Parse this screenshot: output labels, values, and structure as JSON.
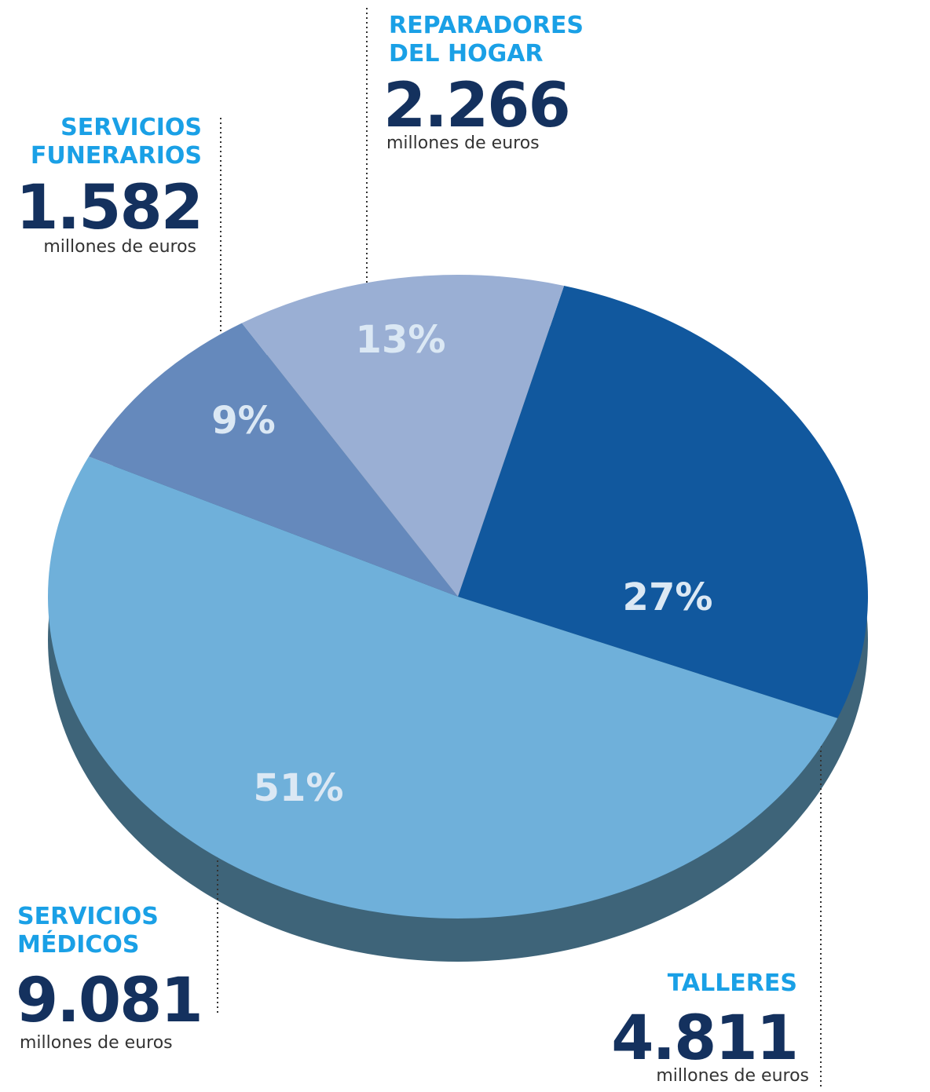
{
  "chart_data": {
    "type": "pie",
    "categories": [
      "TALLERES",
      "SERVICIOS\nMÉDICOS",
      "SERVICIOS\nFUNERARIOS",
      "REPARADORES\nDEL HOGAR"
    ],
    "values": [
      27,
      51,
      9,
      13
    ],
    "value_labels": [
      "27%",
      "51%",
      "9%",
      "13%"
    ],
    "amounts": [
      4811,
      9081,
      1582,
      2266
    ],
    "amount_labels": [
      "4.811",
      "9.081",
      "1.582",
      "2.266"
    ],
    "unit": "millones de euros",
    "colors": [
      "#11589e",
      "#6fb0da",
      "#6589bc",
      "#9aafd4"
    ]
  }
}
